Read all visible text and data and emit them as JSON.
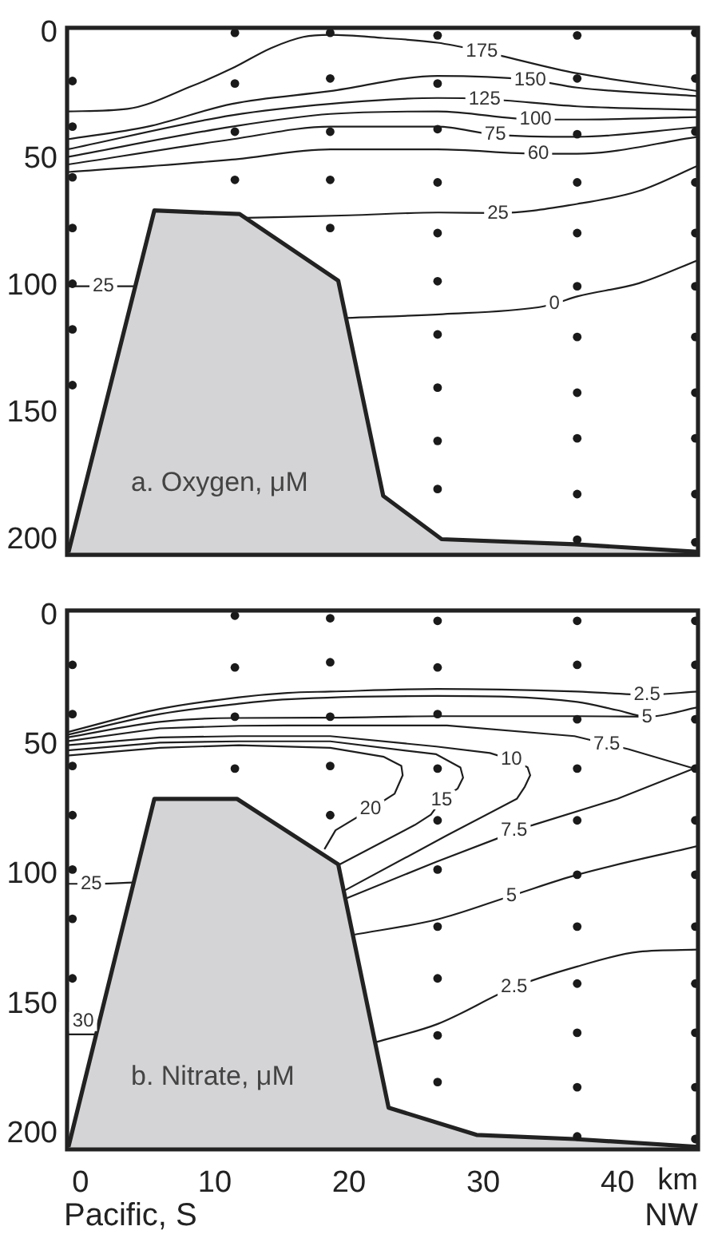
{
  "chart_data": [
    {
      "type": "line",
      "title": "a. Oxygen, μM",
      "tick_labels": "y",
      "xlim": [
        -1,
        46
      ],
      "ylim": [
        206,
        -2
      ],
      "xticks": [
        0,
        10,
        20,
        30,
        40
      ],
      "yticks": [
        0,
        50,
        100,
        150,
        200
      ],
      "annotations": [
        {
          "text": "175",
          "x": 29.9,
          "y": 7.3
        },
        {
          "text": "150",
          "x": 33.5,
          "y": 18.6
        },
        {
          "text": "125",
          "x": 30.1,
          "y": 26.1
        },
        {
          "text": "100",
          "x": 33.9,
          "y": 34.2
        },
        {
          "text": "75",
          "x": 30.9,
          "y": 40.2
        },
        {
          "text": "60",
          "x": 34.1,
          "y": 47.7
        },
        {
          "text": "25",
          "x": 31.1,
          "y": 71.1
        },
        {
          "text": "25",
          "x": 1.7,
          "y": 100
        },
        {
          "text": "0",
          "x": 35.3,
          "y": 106.9
        }
      ],
      "series": [
        {
          "color": "#1e1e1e",
          "x": [
            -1,
            3.5,
            8.3,
            11.3,
            14.2,
            16.6,
            18.6,
            22.5,
            26.6,
            29.9,
            37,
            46
          ],
          "values": [
            31,
            30,
            21,
            14,
            6,
            1.6,
            0.8,
            2,
            3.9,
            7.3,
            16,
            23
          ]
        },
        {
          "color": "#1e1e1e",
          "x": [
            -1,
            5,
            11.3,
            18.6,
            26.6,
            33.5,
            37,
            46
          ],
          "values": [
            42,
            37,
            28,
            23,
            17,
            18.6,
            21.6,
            25
          ]
        },
        {
          "color": "#1e1e1e",
          "x": [
            -1,
            11.3,
            18.6,
            26.6,
            30.1,
            37,
            46
          ],
          "values": [
            46,
            32.5,
            28,
            25.7,
            26.1,
            29,
            30.4
          ]
        },
        {
          "color": "#1e1e1e",
          "x": [
            -1,
            11.3,
            18.6,
            26.6,
            33.9,
            37,
            46
          ],
          "values": [
            49,
            37,
            32,
            31,
            34.2,
            34.2,
            33.2
          ]
        },
        {
          "color": "#1e1e1e",
          "x": [
            -1,
            11.3,
            18.6,
            26.6,
            30.9,
            37,
            46
          ],
          "values": [
            52,
            42,
            37,
            37,
            40.2,
            41,
            37.2
          ]
        },
        {
          "color": "#1e1e1e",
          "x": [
            -1,
            11.3,
            18.6,
            26.6,
            34.1,
            37,
            46
          ],
          "values": [
            55,
            50,
            46,
            46,
            47.7,
            47.7,
            41
          ]
        },
        {
          "color": "#1e1e1e",
          "x": [
            12.4,
            20,
            26.6,
            31.1,
            37,
            41.6,
            46
          ],
          "values": [
            73,
            72,
            70.9,
            71.1,
            67.5,
            62.4,
            52.4
          ]
        },
        {
          "color": "#1e1e1e",
          "x": [
            -1,
            1.7,
            4
          ],
          "values": [
            100,
            100,
            100
          ]
        },
        {
          "color": "#1e1e1e",
          "x": [
            19.8,
            27,
            34.1,
            35.3,
            37,
            41.6,
            46
          ],
          "values": [
            112.5,
            111,
            108.3,
            106.9,
            104,
            98.8,
            89.7
          ]
        },
        {
          "type": "area",
          "color": "#d4d4d6",
          "x": [
            -0.9,
            5.5,
            11.85,
            19.2,
            22.55,
            26.9,
            36.8,
            46
          ],
          "values": [
            205,
            70.1,
            71.5,
            97.8,
            182.7,
            199.8,
            201.8,
            204.8
          ]
        },
        {
          "type": "scatter",
          "marker": "circle",
          "color": "#1a1a1a",
          "x": [
            -0.6,
            -0.6,
            -0.6,
            -0.6,
            -0.6,
            -0.6,
            -0.6,
            11.5,
            11.5,
            11.5,
            11.5,
            18.6,
            18.6,
            18.6,
            18.6,
            18.6,
            26.6,
            26.6,
            26.6,
            26.6,
            26.6,
            26.6,
            26.6,
            26.6,
            26.6,
            26.6,
            37,
            37,
            37,
            37,
            37,
            37,
            37,
            37,
            37,
            37,
            37,
            45.8,
            45.8,
            45.8,
            45.8,
            45.8,
            45.8,
            45.8,
            45.8,
            45.8,
            45.8,
            45.8
          ],
          "values": [
            19,
            37,
            57,
            77,
            99,
            117,
            139,
            0,
            20,
            39,
            58,
            0,
            18,
            39,
            58,
            77,
            1,
            20,
            38,
            59,
            79,
            98,
            119,
            140,
            161,
            180,
            1,
            18,
            40,
            59,
            79,
            100,
            120,
            142,
            160,
            182,
            200,
            0,
            18,
            39,
            59,
            79,
            100,
            120,
            142,
            160,
            182,
            201
          ]
        }
      ]
    },
    {
      "type": "line",
      "title": "b. Nitrate, μM",
      "xlabel": "km",
      "xlim": [
        -1,
        46
      ],
      "ylim": [
        206,
        -2
      ],
      "xticks": [
        0,
        10,
        20,
        30,
        40
      ],
      "yticks": [
        0,
        50,
        100,
        150,
        200
      ],
      "annotations": [
        {
          "text": "2.5",
          "x": 42.2,
          "y": 30.5
        },
        {
          "text": "5",
          "x": 42.2,
          "y": 39
        },
        {
          "text": "7.5",
          "x": 39.2,
          "y": 49.5
        },
        {
          "text": "10",
          "x": 32.1,
          "y": 55.6
        },
        {
          "text": "15",
          "x": 26.9,
          "y": 71.1
        },
        {
          "text": "20",
          "x": 21.6,
          "y": 74.7
        },
        {
          "text": "7.5",
          "x": 32.3,
          "y": 82.8
        },
        {
          "text": "5",
          "x": 32.1,
          "y": 108.1
        },
        {
          "text": "2.5",
          "x": 32.3,
          "y": 143.4
        },
        {
          "text": "25",
          "x": 0.8,
          "y": 103.5
        },
        {
          "text": "30",
          "x": 0.2,
          "y": 156.6
        },
        "Pacific, S",
        "NW"
      ],
      "series": [
        {
          "color": "#1e1e1e",
          "x": [
            -1,
            5.9,
            11.8,
            15.4,
            18.6,
            26.6,
            37,
            42.2,
            46
          ],
          "values": [
            45,
            36,
            31.5,
            29.8,
            29.3,
            28.3,
            29.3,
            30.5,
            29.3
          ]
        },
        {
          "color": "#1e1e1e",
          "x": [
            -1,
            5.9,
            11.8,
            15.4,
            26.6,
            37,
            40,
            42.2,
            46
          ],
          "values": [
            46,
            38,
            34,
            32.3,
            31,
            33.3,
            36.5,
            39,
            35.4
          ]
        },
        {
          "color": "#1e1e1e",
          "x": [
            -1,
            5.9,
            11.5,
            18.6,
            26.6,
            37,
            42.2
          ],
          "values": [
            47,
            41,
            39.5,
            39.4,
            38.8,
            38.8,
            39
          ]
        },
        {
          "color": "#1e1e1e",
          "x": [
            -1,
            5.9,
            11.8,
            15.4,
            27.3,
            36.8,
            39.2,
            40.8,
            45.7,
            40,
            33.7,
            32.3,
            31.1,
            26.5,
            19.8
          ],
          "values": [
            48.5,
            43.5,
            42.5,
            42.4,
            42.4,
            46.5,
            49.5,
            51.5,
            59,
            70.7,
            80.8,
            82.8,
            85.9,
            95,
            109.1
          ]
        },
        {
          "color": "#1e1e1e",
          "x": [
            -1,
            5.9,
            11.8,
            18.6,
            26.5,
            30.5,
            32.1,
            33.3,
            33.5,
            33.1,
            32.5,
            27.3,
            19.7
          ],
          "values": [
            50,
            47,
            46.5,
            46.5,
            50.5,
            53,
            55.6,
            58.5,
            61.6,
            66,
            70.7,
            84.8,
            106
          ]
        },
        {
          "color": "#1e1e1e",
          "x": [
            -1,
            5.9,
            11.8,
            18.6,
            26.5,
            28.3,
            28.5,
            28.1,
            26.9,
            26.1,
            24.9,
            19.3
          ],
          "values": [
            52,
            49,
            48.5,
            48.5,
            53.5,
            58.6,
            62.5,
            66.7,
            71.1,
            76.8,
            80.8,
            96
          ]
        },
        {
          "color": "#1e1e1e",
          "x": [
            -1,
            5.9,
            11.8,
            18.6,
            22.6,
            23.9,
            24,
            23.4,
            21.6,
            19,
            18.2
          ],
          "values": [
            54,
            51,
            50,
            51,
            54.5,
            58,
            61.6,
            68.7,
            74.7,
            82.8,
            89.9
          ]
        },
        {
          "color": "#1e1e1e",
          "x": [
            20.3,
            26.6,
            32.1,
            37,
            46
          ],
          "values": [
            123.2,
            117.2,
            108.1,
            100,
            88.9
          ]
        },
        {
          "color": "#1e1e1e",
          "x": [
            22,
            26.6,
            32.3,
            37,
            41.6,
            46
          ],
          "values": [
            164.6,
            157.6,
            143.4,
            135.4,
            129.7,
            128.9
          ]
        },
        {
          "color": "#1e1e1e",
          "x": [
            -1,
            0.8,
            3.9
          ],
          "values": [
            103.5,
            103.5,
            103
          ]
        },
        {
          "color": "#1e1e1e",
          "x": [
            -1,
            1.2
          ],
          "values": [
            161.6,
            161.6
          ]
        },
        {
          "type": "area",
          "color": "#d4d4d6",
          "x": [
            -0.9,
            5.5,
            11.65,
            19.2,
            22.95,
            29.5,
            36.8,
            46
          ],
          "values": [
            205,
            70.7,
            70.7,
            96,
            189.9,
            200.4,
            202,
            205
          ]
        },
        {
          "type": "scatter",
          "marker": "circle",
          "color": "#1a1a1a",
          "x": [
            -0.6,
            -0.6,
            -0.6,
            -0.6,
            -0.6,
            -0.6,
            -0.6,
            11.5,
            11.5,
            11.5,
            11.5,
            18.6,
            18.6,
            18.6,
            18.6,
            18.6,
            26.6,
            26.6,
            26.6,
            26.6,
            26.6,
            26.6,
            26.6,
            26.6,
            26.6,
            26.6,
            37,
            37,
            37,
            37,
            37,
            37,
            37,
            37,
            37,
            37,
            37,
            45.8,
            45.8,
            45.8,
            45.8,
            45.8,
            45.8,
            45.8,
            45.8,
            45.8,
            45.8,
            45.8
          ],
          "values": [
            19,
            38,
            58,
            77,
            98,
            117,
            140,
            0,
            20,
            39,
            59,
            1,
            18,
            39,
            58,
            77,
            2,
            20,
            38,
            59,
            79,
            98,
            120,
            140,
            162,
            180,
            2,
            19,
            40,
            59,
            79,
            100,
            120,
            142,
            161,
            182,
            201,
            2,
            19,
            40,
            59,
            79,
            100,
            120,
            142,
            161,
            182,
            202
          ]
        }
      ]
    }
  ]
}
